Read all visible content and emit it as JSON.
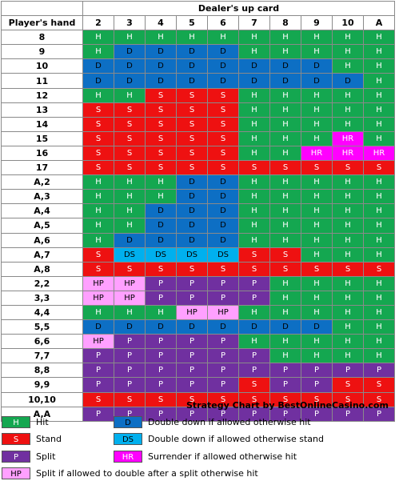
{
  "title": "Dealer's up card",
  "hand_header": "Player's hand",
  "dealer_cards": [
    "2",
    "3",
    "4",
    "5",
    "6",
    "7",
    "8",
    "9",
    "10",
    "A"
  ],
  "rows": [
    {
      "hand": "8",
      "actions": [
        "H",
        "H",
        "H",
        "H",
        "H",
        "H",
        "H",
        "H",
        "H",
        "H"
      ]
    },
    {
      "hand": "9",
      "actions": [
        "H",
        "D",
        "D",
        "D",
        "D",
        "H",
        "H",
        "H",
        "H",
        "H"
      ]
    },
    {
      "hand": "10",
      "actions": [
        "D",
        "D",
        "D",
        "D",
        "D",
        "D",
        "D",
        "D",
        "H",
        "H"
      ]
    },
    {
      "hand": "11",
      "actions": [
        "D",
        "D",
        "D",
        "D",
        "D",
        "D",
        "D",
        "D",
        "D",
        "H"
      ]
    },
    {
      "hand": "12",
      "actions": [
        "H",
        "H",
        "S",
        "S",
        "S",
        "H",
        "H",
        "H",
        "H",
        "H"
      ]
    },
    {
      "hand": "13",
      "actions": [
        "S",
        "S",
        "S",
        "S",
        "S",
        "H",
        "H",
        "H",
        "H",
        "H"
      ]
    },
    {
      "hand": "14",
      "actions": [
        "S",
        "S",
        "S",
        "S",
        "S",
        "H",
        "H",
        "H",
        "H",
        "H"
      ]
    },
    {
      "hand": "15",
      "actions": [
        "S",
        "S",
        "S",
        "S",
        "S",
        "H",
        "H",
        "H",
        "HR",
        "H"
      ]
    },
    {
      "hand": "16",
      "actions": [
        "S",
        "S",
        "S",
        "S",
        "S",
        "H",
        "H",
        "HR",
        "HR",
        "HR"
      ]
    },
    {
      "hand": "17",
      "actions": [
        "S",
        "S",
        "S",
        "S",
        "S",
        "S",
        "S",
        "S",
        "S",
        "S"
      ]
    },
    {
      "hand": "A,2",
      "actions": [
        "H",
        "H",
        "H",
        "D",
        "D",
        "H",
        "H",
        "H",
        "H",
        "H"
      ]
    },
    {
      "hand": "A,3",
      "actions": [
        "H",
        "H",
        "H",
        "D",
        "D",
        "H",
        "H",
        "H",
        "H",
        "H"
      ]
    },
    {
      "hand": "A,4",
      "actions": [
        "H",
        "H",
        "D",
        "D",
        "D",
        "H",
        "H",
        "H",
        "H",
        "H"
      ]
    },
    {
      "hand": "A,5",
      "actions": [
        "H",
        "H",
        "D",
        "D",
        "D",
        "H",
        "H",
        "H",
        "H",
        "H"
      ]
    },
    {
      "hand": "A,6",
      "actions": [
        "H",
        "D",
        "D",
        "D",
        "D",
        "H",
        "H",
        "H",
        "H",
        "H"
      ]
    },
    {
      "hand": "A,7",
      "actions": [
        "S",
        "DS",
        "DS",
        "DS",
        "DS",
        "S",
        "S",
        "H",
        "H",
        "H"
      ]
    },
    {
      "hand": "A,8",
      "actions": [
        "S",
        "S",
        "S",
        "S",
        "S",
        "S",
        "S",
        "S",
        "S",
        "S"
      ]
    },
    {
      "hand": "2,2",
      "actions": [
        "HP",
        "HP",
        "P",
        "P",
        "P",
        "P",
        "H",
        "H",
        "H",
        "H"
      ]
    },
    {
      "hand": "3,3",
      "actions": [
        "HP",
        "HP",
        "P",
        "P",
        "P",
        "P",
        "H",
        "H",
        "H",
        "H"
      ]
    },
    {
      "hand": "4,4",
      "actions": [
        "H",
        "H",
        "H",
        "HP",
        "HP",
        "H",
        "H",
        "H",
        "H",
        "H"
      ]
    },
    {
      "hand": "5,5",
      "actions": [
        "D",
        "D",
        "D",
        "D",
        "D",
        "D",
        "D",
        "D",
        "H",
        "H"
      ]
    },
    {
      "hand": "6,6",
      "actions": [
        "HP",
        "P",
        "P",
        "P",
        "P",
        "H",
        "H",
        "H",
        "H",
        "H"
      ]
    },
    {
      "hand": "7,7",
      "actions": [
        "P",
        "P",
        "P",
        "P",
        "P",
        "P",
        "H",
        "H",
        "H",
        "H"
      ]
    },
    {
      "hand": "8,8",
      "actions": [
        "P",
        "P",
        "P",
        "P",
        "P",
        "P",
        "P",
        "P",
        "P",
        "P"
      ]
    },
    {
      "hand": "9,9",
      "actions": [
        "P",
        "P",
        "P",
        "P",
        "P",
        "S",
        "P",
        "P",
        "S",
        "S"
      ]
    },
    {
      "hand": "10,10",
      "actions": [
        "S",
        "S",
        "S",
        "S",
        "S",
        "S",
        "S",
        "S",
        "S",
        "S"
      ]
    },
    {
      "hand": "A,A",
      "actions": [
        "P",
        "P",
        "P",
        "P",
        "P",
        "P",
        "P",
        "P",
        "P",
        "P"
      ]
    }
  ],
  "colors": {
    "H": "#14a750",
    "D": "#0d6fc4",
    "S": "#ee1111",
    "DS": "#00b0ee",
    "P": "#7030a0",
    "HR": "#ff00ff",
    "HP": "#ffa0ff"
  },
  "text_colors": {
    "H": "#ffffff",
    "D": "#000000",
    "S": "#ffffff",
    "DS": "#000000",
    "P": "#ffffff",
    "HR": "#ffffff",
    "HP": "#000000"
  },
  "credit": "Strategy Chart by BestOnlineCasino.com",
  "legend": {
    "hit": {
      "code": "H",
      "label": "Hit"
    },
    "stand": {
      "code": "S",
      "label": "Stand"
    },
    "split": {
      "code": "P",
      "label": "Split"
    },
    "split_das": {
      "code": "HP",
      "label": "Split if allowed to double after a split otherwise hit"
    },
    "double": {
      "code": "D",
      "label": "Double down if allowed otherwise hit"
    },
    "double_stand": {
      "code": "DS",
      "label": "Double down if allowed otherwise stand"
    },
    "surrender": {
      "code": "HR",
      "label": "Surrender if allowed otherwise hit"
    }
  }
}
